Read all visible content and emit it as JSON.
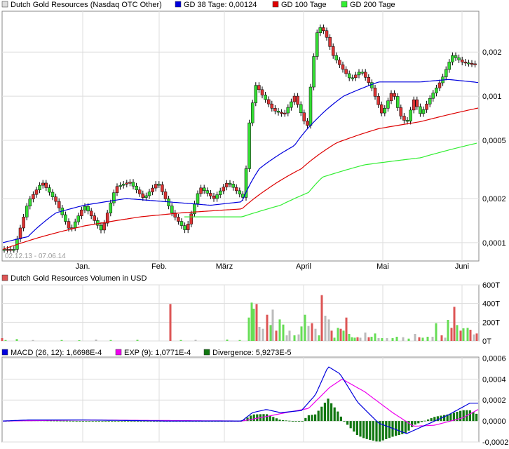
{
  "colors": {
    "gd38": "#0000dd",
    "gd100": "#dd0000",
    "gd200": "#33ee33",
    "candle_up": "#33dd33",
    "candle_down": "#dd3333",
    "macd": "#0000dd",
    "exp": "#ee00ee",
    "divergence": "#117711",
    "vol_up": "#66dd55",
    "vol_down": "#dd5555",
    "vol_flat": "#bbbbbb",
    "grid": "#dddddd"
  },
  "chart_data": [
    {
      "type": "candlestick",
      "legend": [
        {
          "name": "Dutch Gold Resources (Nasdaq OTC Other)",
          "color": "#dddddd"
        },
        {
          "name": "GD 38 Tage: 0,00124",
          "color": "#0000dd"
        },
        {
          "name": "GD 100 Tage",
          "color": "#dd0000"
        },
        {
          "name": "GD 200 Tage",
          "color": "#33ee33"
        }
      ],
      "date_range": "02.12.13 - 07.06.14",
      "x_ticks": [
        "Jan.",
        "Feb.",
        "März",
        "April",
        "Mai",
        "Juni"
      ],
      "y_scale": "log",
      "y_ticks": [
        {
          "value": 0.0001,
          "label": "0,0001"
        },
        {
          "value": 0.0002,
          "label": "0,0002"
        },
        {
          "value": 0.0005,
          "label": "0,0005"
        },
        {
          "value": 0.001,
          "label": "0,001"
        },
        {
          "value": 0.002,
          "label": "0,002"
        }
      ],
      "ylim": [
        7.5e-05,
        0.0038
      ]
    },
    {
      "type": "bar",
      "title": "Dutch Gold Resources Volumen in USD",
      "y_ticks": [
        "0T",
        "200T",
        "400T",
        "600T"
      ],
      "ylim": [
        0,
        600
      ],
      "bars": [
        {
          "x": 3,
          "v": 30,
          "c": "down"
        },
        {
          "x": 8,
          "v": 10,
          "c": "up"
        },
        {
          "x": 24,
          "v": 20,
          "c": "up"
        },
        {
          "x": 47,
          "v": 10,
          "c": "flat"
        },
        {
          "x": 88,
          "v": 10,
          "c": "up"
        },
        {
          "x": 113,
          "v": 8,
          "c": "up"
        },
        {
          "x": 137,
          "v": 15,
          "c": "flat"
        },
        {
          "x": 158,
          "v": 10,
          "c": "up"
        },
        {
          "x": 196,
          "v": 12,
          "c": "up"
        },
        {
          "x": 243,
          "v": 395,
          "c": "down"
        },
        {
          "x": 258,
          "v": 10,
          "c": "up"
        },
        {
          "x": 279,
          "v": 12,
          "c": "flat"
        },
        {
          "x": 324,
          "v": 15,
          "c": "up"
        },
        {
          "x": 342,
          "v": 10,
          "c": "up"
        },
        {
          "x": 355,
          "v": 250,
          "c": "up"
        },
        {
          "x": 359,
          "v": 410,
          "c": "up"
        },
        {
          "x": 362,
          "v": 345,
          "c": "up"
        },
        {
          "x": 366,
          "v": 395,
          "c": "down"
        },
        {
          "x": 370,
          "v": 150,
          "c": "flat"
        },
        {
          "x": 375,
          "v": 130,
          "c": "flat"
        },
        {
          "x": 381,
          "v": 280,
          "c": "down"
        },
        {
          "x": 386,
          "v": 170,
          "c": "up"
        },
        {
          "x": 389,
          "v": 335,
          "c": "flat"
        },
        {
          "x": 394,
          "v": 110,
          "c": "down"
        },
        {
          "x": 399,
          "v": 230,
          "c": "up"
        },
        {
          "x": 404,
          "v": 175,
          "c": "up"
        },
        {
          "x": 409,
          "v": 60,
          "c": "flat"
        },
        {
          "x": 413,
          "v": 110,
          "c": "flat"
        },
        {
          "x": 420,
          "v": 60,
          "c": "up"
        },
        {
          "x": 426,
          "v": 70,
          "c": "flat"
        },
        {
          "x": 430,
          "v": 155,
          "c": "up"
        },
        {
          "x": 435,
          "v": 280,
          "c": "up"
        },
        {
          "x": 440,
          "v": 160,
          "c": "flat"
        },
        {
          "x": 445,
          "v": 190,
          "c": "down"
        },
        {
          "x": 450,
          "v": 130,
          "c": "flat"
        },
        {
          "x": 455,
          "v": 60,
          "c": "up"
        },
        {
          "x": 459,
          "v": 490,
          "c": "down"
        },
        {
          "x": 464,
          "v": 270,
          "c": "flat"
        },
        {
          "x": 469,
          "v": 230,
          "c": "flat"
        },
        {
          "x": 473,
          "v": 110,
          "c": "down"
        },
        {
          "x": 477,
          "v": 35,
          "c": "up"
        },
        {
          "x": 482,
          "v": 140,
          "c": "up"
        },
        {
          "x": 486,
          "v": 130,
          "c": "down"
        },
        {
          "x": 490,
          "v": 110,
          "c": "up"
        },
        {
          "x": 494,
          "v": 250,
          "c": "down"
        },
        {
          "x": 498,
          "v": 75,
          "c": "up"
        },
        {
          "x": 502,
          "v": 40,
          "c": "up"
        },
        {
          "x": 506,
          "v": 35,
          "c": "up"
        },
        {
          "x": 510,
          "v": 40,
          "c": "down"
        },
        {
          "x": 514,
          "v": 35,
          "c": "flat"
        },
        {
          "x": 521,
          "v": 90,
          "c": "flat"
        },
        {
          "x": 526,
          "v": 40,
          "c": "down"
        },
        {
          "x": 530,
          "v": 45,
          "c": "up"
        },
        {
          "x": 535,
          "v": 80,
          "c": "up"
        },
        {
          "x": 540,
          "v": 30,
          "c": "flat"
        },
        {
          "x": 545,
          "v": 30,
          "c": "up"
        },
        {
          "x": 552,
          "v": 30,
          "c": "flat"
        },
        {
          "x": 560,
          "v": 30,
          "c": "up"
        },
        {
          "x": 566,
          "v": 45,
          "c": "up"
        },
        {
          "x": 575,
          "v": 40,
          "c": "flat"
        },
        {
          "x": 583,
          "v": 25,
          "c": "up"
        },
        {
          "x": 592,
          "v": 75,
          "c": "flat"
        },
        {
          "x": 598,
          "v": 40,
          "c": "down"
        },
        {
          "x": 603,
          "v": 35,
          "c": "up"
        },
        {
          "x": 610,
          "v": 45,
          "c": "up"
        },
        {
          "x": 617,
          "v": 45,
          "c": "flat"
        },
        {
          "x": 622,
          "v": 190,
          "c": "up"
        },
        {
          "x": 630,
          "v": 60,
          "c": "down"
        },
        {
          "x": 635,
          "v": 35,
          "c": "flat"
        },
        {
          "x": 639,
          "v": 225,
          "c": "up"
        },
        {
          "x": 644,
          "v": 140,
          "c": "down"
        },
        {
          "x": 648,
          "v": 365,
          "c": "down"
        },
        {
          "x": 652,
          "v": 170,
          "c": "up"
        },
        {
          "x": 657,
          "v": 110,
          "c": "down"
        },
        {
          "x": 661,
          "v": 135,
          "c": "up"
        },
        {
          "x": 667,
          "v": 140,
          "c": "up"
        },
        {
          "x": 671,
          "v": 120,
          "c": "down"
        },
        {
          "x": 676,
          "v": 70,
          "c": "flat"
        },
        {
          "x": 680,
          "v": 80,
          "c": "down"
        }
      ]
    },
    {
      "type": "line",
      "legend": [
        {
          "name": "MACD (26, 12): 1,6698E-4",
          "color": "#0000dd"
        },
        {
          "name": "EXP (9): 1,0771E-4",
          "color": "#ee00ee"
        },
        {
          "name": "Divergence: 5,9273E-5",
          "color": "#117711"
        }
      ],
      "y_ticks": [
        {
          "value": -0.0002,
          "label": "-0,0002"
        },
        {
          "value": 0,
          "label": "0,0000"
        },
        {
          "value": 0.0002,
          "label": "0,0002"
        },
        {
          "value": 0.0004,
          "label": "0,0004"
        },
        {
          "value": 0.0006,
          "label": "0,0006"
        }
      ],
      "ylim": [
        -0.0002,
        0.00061
      ]
    }
  ]
}
